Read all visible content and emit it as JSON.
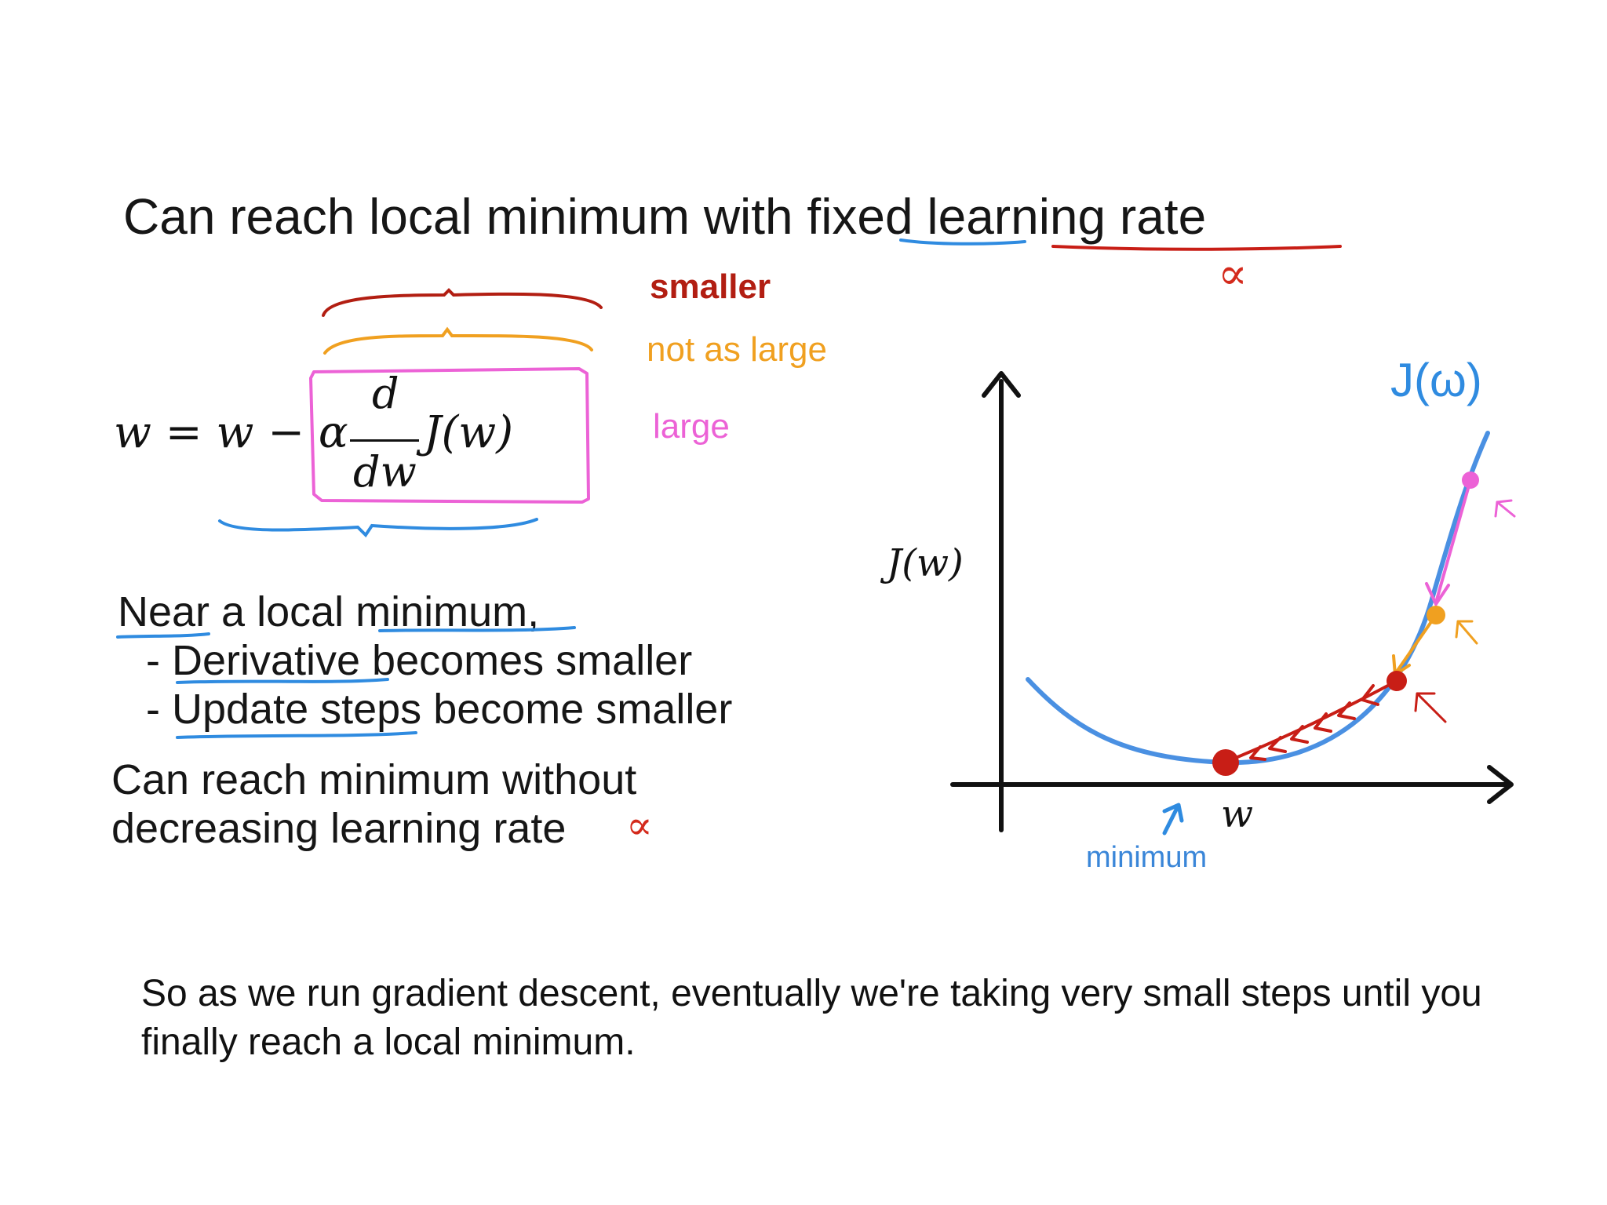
{
  "slide": {
    "title": "Can reach local minimum with fixed learning rate",
    "alpha_symbol": "∝",
    "equation": {
      "lhs": "w = w − α",
      "frac_num": "d",
      "frac_den": "dw",
      "func": "J(w)"
    },
    "annotations": {
      "smaller": "smaller",
      "not_as_large": "not as large",
      "large": "large"
    },
    "notes": {
      "heading": "Near a local minimum,",
      "bullets": [
        "- Derivative becomes smaller",
        "- Update steps become smaller"
      ],
      "conclusion_line1": "Can reach minimum without",
      "conclusion_line2": "decreasing learning rate"
    },
    "graph": {
      "y_axis_label": "J(w)",
      "x_axis_label": "w",
      "curve_label": "J(ω)",
      "minimum_label": "minimum"
    },
    "colors": {
      "blue": "#3b82e0",
      "red": "#c81e16",
      "orange": "#f0a020",
      "pink": "#ec62d6"
    }
  },
  "caption": "So as we run gradient descent, eventually we're taking very small steps until you finally reach a local minimum."
}
